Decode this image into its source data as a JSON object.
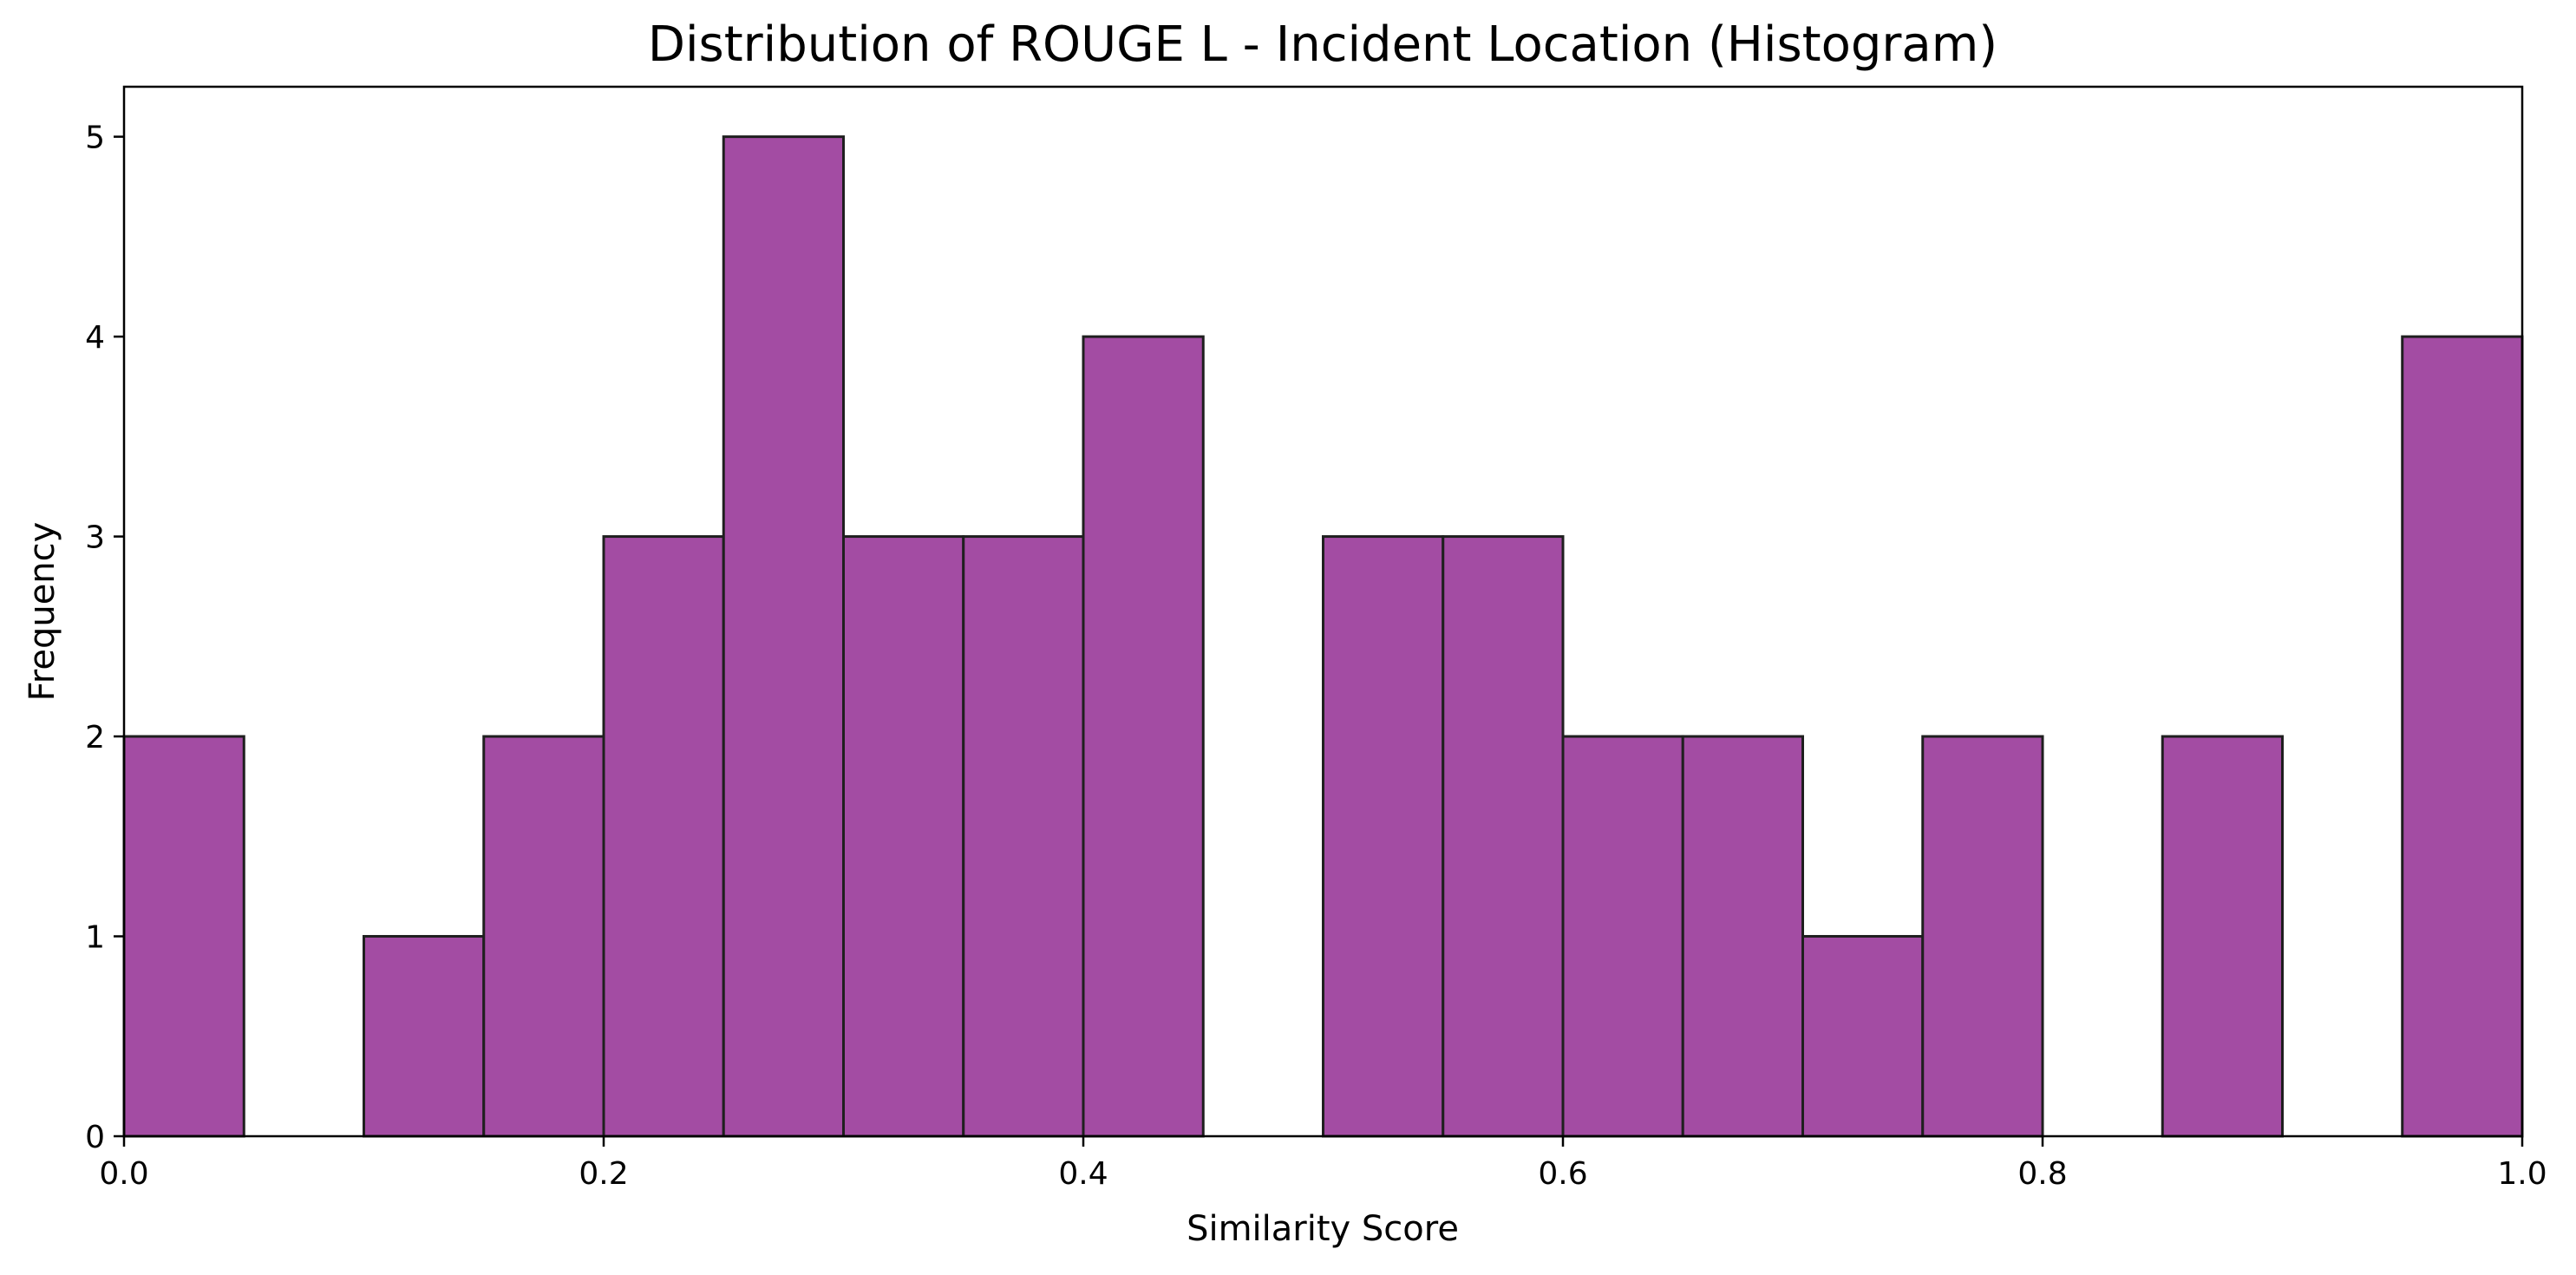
{
  "chart_data": {
    "type": "bar",
    "title": "Distribution of ROUGE L - Incident Location (Histogram)",
    "xlabel": "Similarity Score",
    "ylabel": "Frequency",
    "xlim": [
      0.0,
      1.0
    ],
    "ylim": [
      0,
      5.25
    ],
    "x_ticks": [
      "0.0",
      "0.2",
      "0.4",
      "0.6",
      "0.8",
      "1.0"
    ],
    "y_ticks": [
      "0",
      "1",
      "2",
      "3",
      "4",
      "5"
    ],
    "bin_edges": [
      0.0,
      0.05,
      0.1,
      0.15,
      0.2,
      0.25,
      0.3,
      0.35,
      0.4,
      0.45,
      0.5,
      0.55,
      0.6,
      0.65,
      0.7,
      0.75,
      0.8,
      0.85,
      0.9,
      0.95,
      1.0
    ],
    "values": [
      2,
      0,
      1,
      2,
      3,
      5,
      3,
      3,
      4,
      0,
      3,
      3,
      2,
      2,
      1,
      2,
      0,
      2,
      0,
      4
    ],
    "bar_color": "#a34ca3",
    "edge_color": "#1f1f1f",
    "grid": false,
    "legend": "none"
  }
}
